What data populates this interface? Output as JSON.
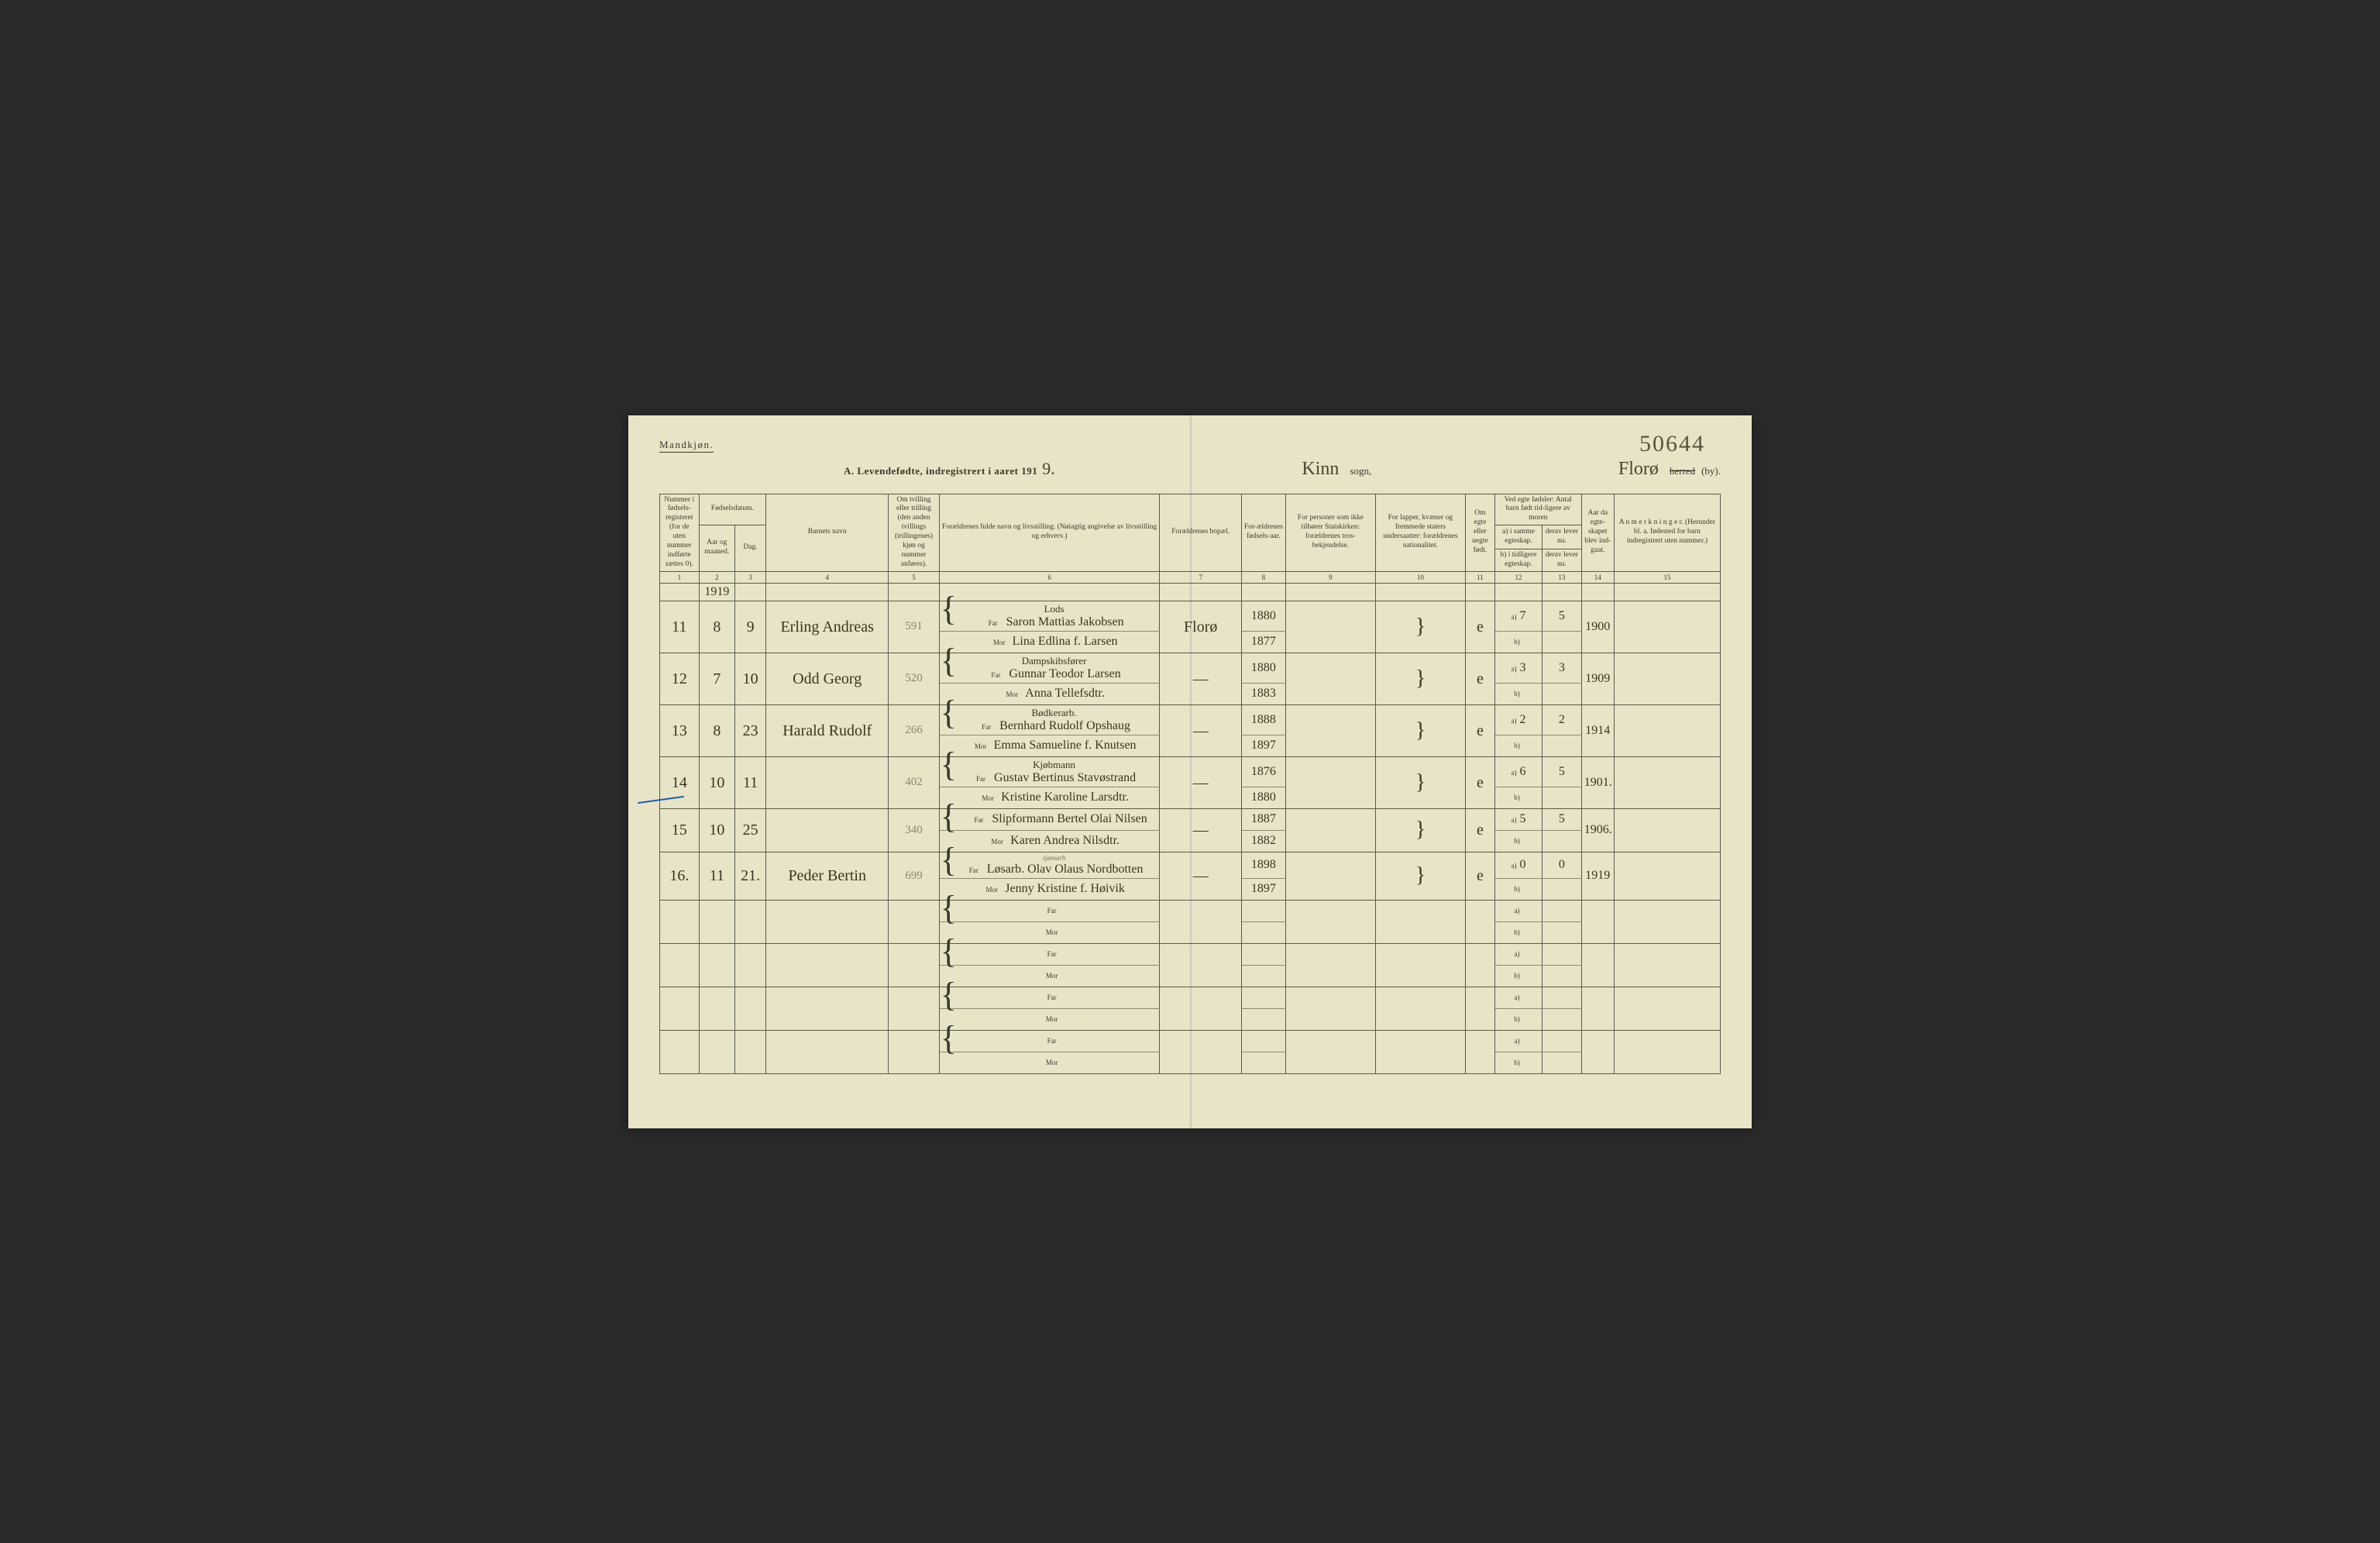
{
  "pageNumber": "50644",
  "genderLabel": "Mandkjøn.",
  "title": {
    "prefix": "A. Levendefødte, indregistrert i aaret 191",
    "yearDigit": "9.",
    "sognHand": "Kinn",
    "sognLabel": "sogn,",
    "byHand": "Florø",
    "herredStrike": "herred",
    "bySuffix": "(by)."
  },
  "headers": {
    "c1": "Nummer i fødsels-registeret (for de uten nummer indførte sættes 0).",
    "c2_top": "Fødselsdatum.",
    "c2a": "Aar og maaned.",
    "c2b": "Dag.",
    "c4": "Barnets navn",
    "c5": "Om tvilling eller trilling (den anden tvillings (trillingenes) kjøn og nummer anføres).",
    "c6": "Forældrenes fulde navn og livsstilling. (Nøiagtig angivelse av livsstilling og erhverv.)",
    "c7": "Forældrenes bopæl.",
    "c8": "For-ældrenes fødsels-aar.",
    "c9": "For personer som ikke tilhører Statskirken: forældrenes tros-bekjendelse.",
    "c10": "For lapper, kvæner og fremmede staters undersaatter: forældrenes nationalitet.",
    "c11": "Om egte eller uegte født.",
    "c12_top": "Ved egte fødsler: Antal barn født tid-ligere av moren",
    "c12a": "a) i samme egteskap.",
    "c12b": "b) i tidligere egteskap.",
    "c13a": "derav lever nu.",
    "c13b": "derav lever nu.",
    "c14": "Aar da egte-skapet blev ind-gaat.",
    "c15": "A n m e r k n i n g e r. (Herunder bl. a. fødested for barn indregistrert uten nummer.)"
  },
  "colnums": [
    "1",
    "2",
    "3",
    "4",
    "5",
    "6",
    "7",
    "8",
    "9",
    "10",
    "11",
    "12",
    "13",
    "14",
    "15"
  ],
  "farLabel": "Far",
  "morLabel": "Mor",
  "aLabel": "a)",
  "bLabel": "b)",
  "yearHeader": "1919",
  "rows": [
    {
      "num": "11",
      "month": "8",
      "day": "9",
      "name": "Erling Andreas",
      "annot": "591",
      "occ": "Lods",
      "far": "Saron Mattias Jakobsen",
      "mor": "Lina Edlina f. Larsen",
      "bopael": "Florø",
      "farYear": "1880",
      "morYear": "1877",
      "egte": "e",
      "aVal": "7",
      "derav": "5",
      "egteAar": "1900"
    },
    {
      "num": "12",
      "month": "7",
      "day": "10",
      "name": "Odd Georg",
      "annot": "520",
      "occ": "Dampskibsfører",
      "far": "Gunnar Teodor Larsen",
      "mor": "Anna Tellefsdtr.",
      "bopael": "—",
      "farYear": "1880",
      "morYear": "1883",
      "egte": "e",
      "aVal": "3",
      "derav": "3",
      "egteAar": "1909"
    },
    {
      "num": "13",
      "month": "8",
      "day": "23",
      "name": "Harald Rudolf",
      "annot": "266",
      "occ": "Bødkerarb.",
      "far": "Bernhard Rudolf Opshaug",
      "mor": "Emma Samueline f. Knutsen",
      "bopael": "—",
      "farYear": "1888",
      "morYear": "1897",
      "egte": "e",
      "aVal": "2",
      "derav": "2",
      "egteAar": "1914"
    },
    {
      "num": "14",
      "month": "10",
      "day": "11",
      "name": "",
      "annot": "402",
      "occ": "Kjøbmann",
      "far": "Gustav Bertinus Stavøstrand",
      "mor": "Kristine Karoline Larsdtr.",
      "bopael": "—",
      "farYear": "1876",
      "morYear": "1880",
      "egte": "e",
      "aVal": "6",
      "derav": "5",
      "egteAar": "1901."
    },
    {
      "num": "15",
      "month": "10",
      "day": "25",
      "name": "",
      "annot": "340",
      "occ": "",
      "far": "Slipformann Bertel Olai Nilsen",
      "mor": "Karen Andrea Nilsdtr.",
      "bopael": "—",
      "farYear": "1887",
      "morYear": "1882",
      "egte": "e",
      "aVal": "5",
      "derav": "5",
      "egteAar": "1906."
    },
    {
      "num": "16.",
      "month": "11",
      "day": "21.",
      "name": "Peder Bertin",
      "annot": "699",
      "occ": "",
      "occNote": "sjømarb",
      "far": "Løsarb. Olav Olaus Nordbotten",
      "mor": "Jenny Kristine f. Høivik",
      "bopael": "—",
      "farYear": "1898",
      "morYear": "1897",
      "egte": "e",
      "aVal": "0",
      "derav": "0",
      "egteAar": "1919"
    }
  ],
  "emptyRowsCount": 4,
  "colWidths": {
    "c1": 48,
    "c2": 44,
    "c3": 38,
    "c4": 150,
    "c5": 62,
    "c6": 270,
    "c7": 100,
    "c8": 54,
    "c9": 110,
    "c10": 110,
    "c11": 36,
    "c12": 58,
    "c13": 48,
    "c14": 40,
    "c15": 130
  },
  "colors": {
    "paper": "#e8e4c8",
    "ink": "#3a3a2a",
    "handInk": "#3a3520",
    "faintInk": "#8a8570",
    "ruleLine": "#5a5a45",
    "tickBlue": "#2060a0"
  }
}
